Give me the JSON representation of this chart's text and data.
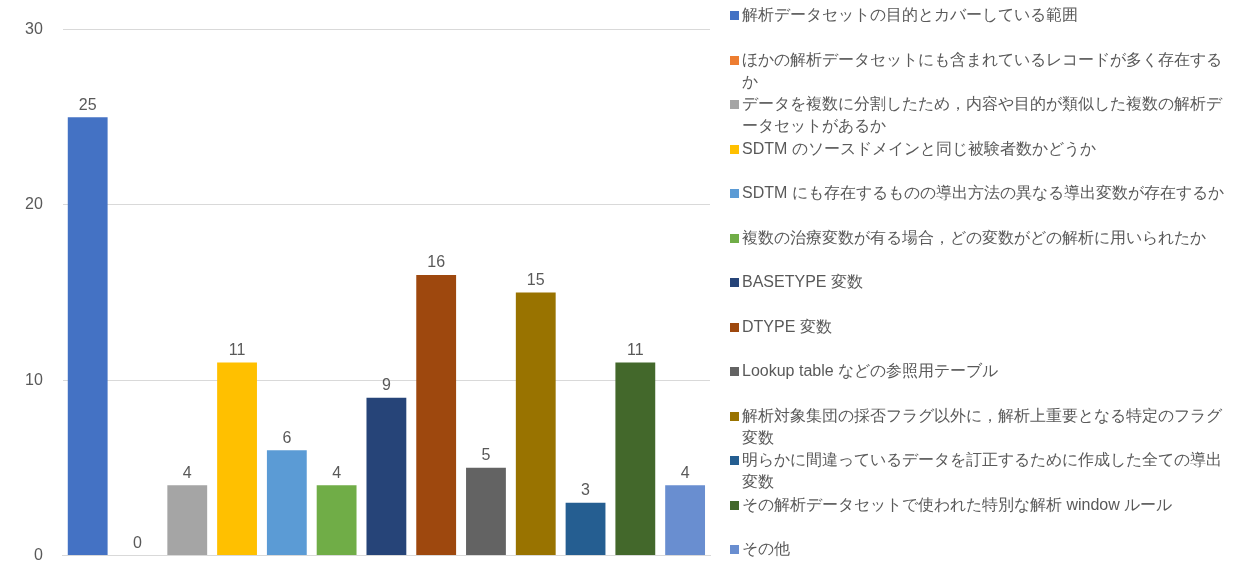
{
  "chart_data": {
    "type": "bar",
    "categories": [
      null,
      null,
      null,
      null,
      null,
      null,
      null,
      null,
      null,
      null,
      null,
      null,
      null
    ],
    "ylim": [
      0,
      30
    ],
    "yticks": [
      0,
      10,
      20,
      30
    ],
    "grid": "y",
    "legend": "right",
    "data_labels": true,
    "series": [
      {
        "name": "解析データセットの目的とカバーしている範囲",
        "color": "#4472c4",
        "values": [
          25,
          null,
          null,
          null,
          null,
          null,
          null,
          null,
          null,
          null,
          null,
          null,
          null
        ]
      },
      {
        "name": "ほかの解析データセットにも含まれているレコードが多く存在するか",
        "color": "#ed7d31",
        "values": [
          null,
          0,
          null,
          null,
          null,
          null,
          null,
          null,
          null,
          null,
          null,
          null,
          null
        ]
      },
      {
        "name": "データを複数に分割したため，内容や目的が類似した複数の解析データセットがあるか",
        "color": "#a5a5a5",
        "values": [
          null,
          null,
          4,
          null,
          null,
          null,
          null,
          null,
          null,
          null,
          null,
          null,
          null
        ]
      },
      {
        "name": "SDTM のソースドメインと同じ被験者数かどうか",
        "color": "#ffc000",
        "values": [
          null,
          null,
          null,
          11,
          null,
          null,
          null,
          null,
          null,
          null,
          null,
          null,
          null
        ]
      },
      {
        "name": "SDTM にも存在するものの導出方法の異なる導出変数が存在するか",
        "color": "#5b9bd5",
        "values": [
          null,
          null,
          null,
          null,
          6,
          null,
          null,
          null,
          null,
          null,
          null,
          null,
          null
        ]
      },
      {
        "name": "複数の治療変数が有る場合，どの変数がどの解析に用いられたか",
        "color": "#70ad47",
        "values": [
          null,
          null,
          null,
          null,
          null,
          4,
          null,
          null,
          null,
          null,
          null,
          null,
          null
        ]
      },
      {
        "name": "BASETYPE 変数",
        "color": "#264478",
        "values": [
          null,
          null,
          null,
          null,
          null,
          null,
          9,
          null,
          null,
          null,
          null,
          null,
          null
        ]
      },
      {
        "name": "DTYPE 変数",
        "color": "#9e480e",
        "values": [
          null,
          null,
          null,
          null,
          null,
          null,
          null,
          16,
          null,
          null,
          null,
          null,
          null
        ]
      },
      {
        "name": "Lookup table などの参照用テーブル",
        "color": "#636363",
        "values": [
          null,
          null,
          null,
          null,
          null,
          null,
          null,
          null,
          5,
          null,
          null,
          null,
          null
        ]
      },
      {
        "name": "解析対象集団の採否フラグ以外に，解析上重要となる特定のフラグ変数",
        "color": "#997300",
        "values": [
          null,
          null,
          null,
          null,
          null,
          null,
          null,
          null,
          null,
          15,
          null,
          null,
          null
        ]
      },
      {
        "name": "明らかに間違っているデータを訂正するために作成した全ての導出変数",
        "color": "#255e91",
        "values": [
          null,
          null,
          null,
          null,
          null,
          null,
          null,
          null,
          null,
          null,
          3,
          null,
          null
        ]
      },
      {
        "name": "その解析データセットで使われた特別な解析 window ルール",
        "color": "#43682b",
        "values": [
          null,
          null,
          null,
          null,
          null,
          null,
          null,
          null,
          null,
          null,
          null,
          11,
          null
        ]
      },
      {
        "name": "その他",
        "color": "#698ed0",
        "values": [
          null,
          null,
          null,
          null,
          null,
          null,
          null,
          null,
          null,
          null,
          null,
          null,
          4
        ]
      }
    ]
  }
}
